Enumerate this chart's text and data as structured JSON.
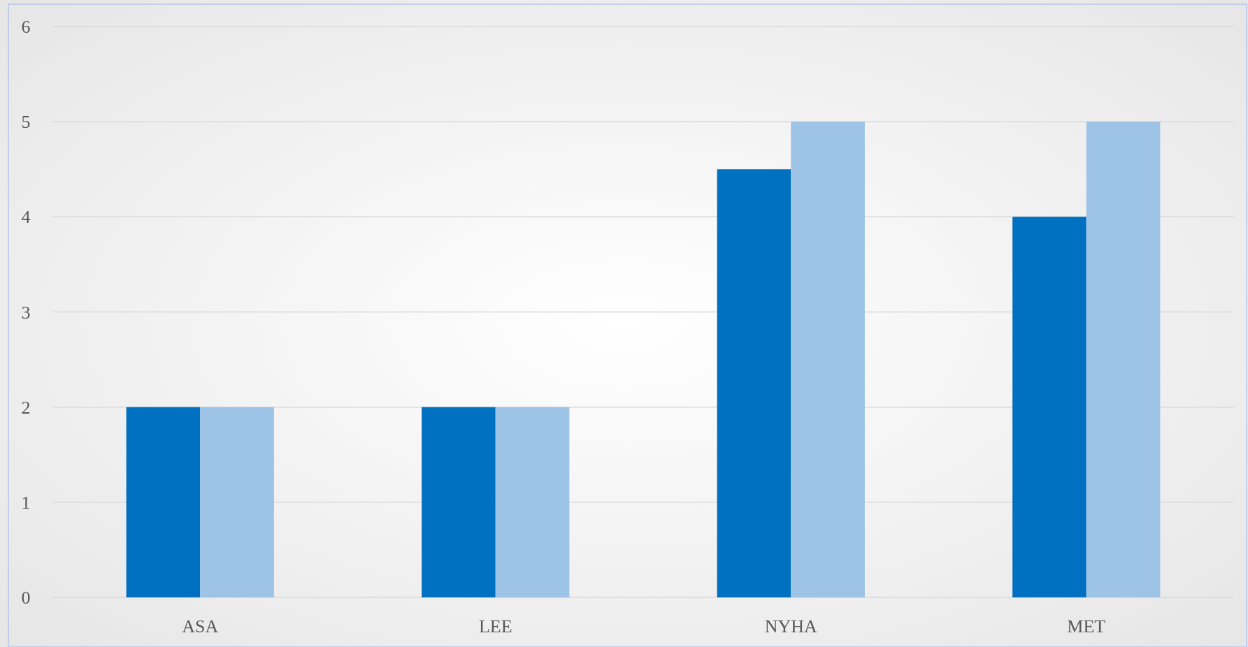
{
  "chart_data": {
    "type": "bar",
    "categories": [
      "ASA",
      "LEE",
      "NYHA",
      "MET"
    ],
    "series": [
      {
        "color": "#0070c0",
        "values": [
          2,
          2,
          4.5,
          4
        ]
      },
      {
        "color": "#9dc3e6",
        "values": [
          2,
          2,
          5,
          5
        ]
      }
    ],
    "ylim": [
      0,
      6
    ],
    "yticks": [
      0,
      1,
      2,
      3,
      4,
      5,
      6
    ],
    "grid": "y"
  }
}
